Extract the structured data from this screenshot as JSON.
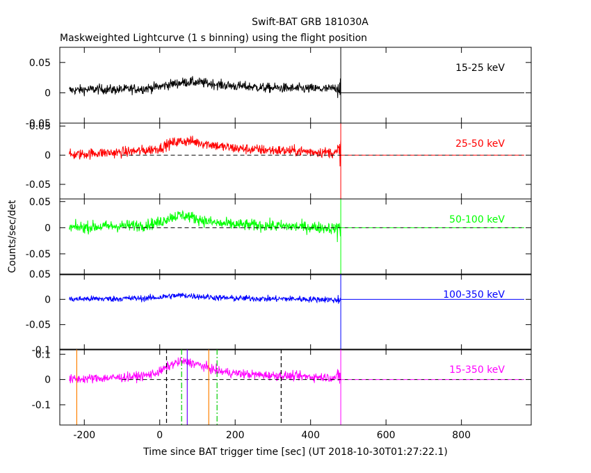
{
  "chart_data": {
    "type": "line",
    "title": "Swift-BAT GRB 181030A",
    "subtitle": "Maskweighted Lightcurve (1 s binning) using the flight position",
    "xlabel": "Time since BAT trigger time [sec] (UT 2018-10-30T01:27:22.1)",
    "ylabel": "Counts/sec/det",
    "xlim": [
      -265,
      985
    ],
    "xticks": [
      -200,
      0,
      200,
      400,
      600,
      800
    ],
    "grid": false,
    "data_end": 480,
    "panels": [
      {
        "band": "15-25 keV",
        "color": "#000000",
        "ylim": [
          -0.05,
          0.075
        ],
        "yticks": [
          -0.05,
          0,
          0.05
        ],
        "dashed_zero": false,
        "series": {
          "name": "15-25 keV",
          "x": [
            -240,
            -200,
            -160,
            -120,
            -80,
            -40,
            0,
            20,
            40,
            60,
            80,
            100,
            120,
            140,
            160,
            200,
            240,
            280,
            320,
            360,
            400,
            440,
            470,
            480
          ],
          "y": [
            0.004,
            0.005,
            0.006,
            0.005,
            0.006,
            0.007,
            0.01,
            0.013,
            0.015,
            0.017,
            0.018,
            0.017,
            0.016,
            0.015,
            0.013,
            0.011,
            0.01,
            0.008,
            0.008,
            0.007,
            0.007,
            0.006,
            0.008,
            0.012
          ],
          "noise": 0.008
        }
      },
      {
        "band": "25-50 keV",
        "color": "#ff0000",
        "ylim": [
          -0.075,
          0.055
        ],
        "yticks": [
          -0.05,
          0,
          0.05
        ],
        "dashed_zero": true,
        "series": {
          "name": "25-50 keV",
          "x": [
            -240,
            -200,
            -160,
            -120,
            -80,
            -40,
            0,
            20,
            40,
            60,
            80,
            100,
            120,
            140,
            160,
            200,
            240,
            280,
            320,
            360,
            400,
            440,
            470,
            480
          ],
          "y": [
            0.0,
            0.002,
            0.004,
            0.004,
            0.006,
            0.008,
            0.012,
            0.018,
            0.022,
            0.024,
            0.024,
            0.022,
            0.02,
            0.018,
            0.015,
            0.012,
            0.01,
            0.009,
            0.008,
            0.007,
            0.006,
            0.005,
            0.004,
            0.008
          ],
          "noise": 0.009
        }
      },
      {
        "band": "50-100 keV",
        "color": "#00ff00",
        "ylim": [
          -0.09,
          0.055
        ],
        "yticks": [
          -0.05,
          0,
          0.05
        ],
        "dashed_zero": true,
        "series": {
          "name": "50-100 keV",
          "x": [
            -240,
            -200,
            -160,
            -120,
            -80,
            -40,
            0,
            20,
            40,
            60,
            80,
            100,
            120,
            140,
            160,
            200,
            240,
            280,
            320,
            360,
            400,
            440,
            470,
            480
          ],
          "y": [
            0.0,
            0.001,
            0.002,
            0.003,
            0.004,
            0.005,
            0.01,
            0.018,
            0.022,
            0.024,
            0.021,
            0.017,
            0.013,
            0.01,
            0.008,
            0.006,
            0.005,
            0.004,
            0.003,
            0.002,
            0.001,
            0.0,
            -0.002,
            0.005
          ],
          "noise": 0.011
        }
      },
      {
        "band": "100-350 keV",
        "color": "#0000ff",
        "ylim": [
          -0.1,
          0.05
        ],
        "yticks": [
          -0.1,
          -0.05,
          0,
          0.05
        ],
        "dashed_zero": false,
        "series": {
          "name": "100-350 keV",
          "x": [
            -240,
            -200,
            -160,
            -120,
            -80,
            -40,
            0,
            20,
            40,
            60,
            80,
            100,
            120,
            140,
            160,
            200,
            240,
            280,
            320,
            360,
            400,
            440,
            470,
            480
          ],
          "y": [
            0.0,
            0.001,
            0.001,
            0.001,
            0.002,
            0.002,
            0.004,
            0.006,
            0.007,
            0.008,
            0.007,
            0.006,
            0.005,
            0.004,
            0.003,
            0.002,
            0.002,
            0.001,
            0.001,
            0.001,
            0.0,
            0.0,
            -0.002,
            0.005
          ],
          "noise": 0.006
        }
      },
      {
        "band": "15-350 keV",
        "color": "#ff00ff",
        "ylim": [
          -0.18,
          0.12
        ],
        "yticks": [
          -0.1,
          0,
          0.1
        ],
        "dashed_zero": true,
        "series": {
          "name": "15-350 keV",
          "x": [
            -240,
            -200,
            -160,
            -120,
            -80,
            -40,
            0,
            20,
            40,
            60,
            80,
            100,
            120,
            140,
            160,
            200,
            240,
            280,
            320,
            360,
            400,
            440,
            470,
            480
          ],
          "y": [
            0.0,
            0.003,
            0.005,
            0.007,
            0.01,
            0.015,
            0.03,
            0.05,
            0.065,
            0.07,
            0.068,
            0.06,
            0.05,
            0.04,
            0.032,
            0.025,
            0.02,
            0.017,
            0.015,
            0.013,
            0.011,
            0.009,
            0.008,
            0.015
          ],
          "noise": 0.018
        }
      }
    ],
    "markers": [
      {
        "x": -220,
        "color": "#ff8000",
        "style": "solid"
      },
      {
        "x": 18,
        "color": "#000000",
        "style": "dashed"
      },
      {
        "x": 58,
        "color": "#00cc00",
        "style": "dashdot"
      },
      {
        "x": 73,
        "color": "#7000ff",
        "style": "solid"
      },
      {
        "x": 130,
        "color": "#ff8000",
        "style": "solid"
      },
      {
        "x": 152,
        "color": "#00cc00",
        "style": "dashdot"
      },
      {
        "x": 322,
        "color": "#000000",
        "style": "dashed"
      }
    ]
  }
}
